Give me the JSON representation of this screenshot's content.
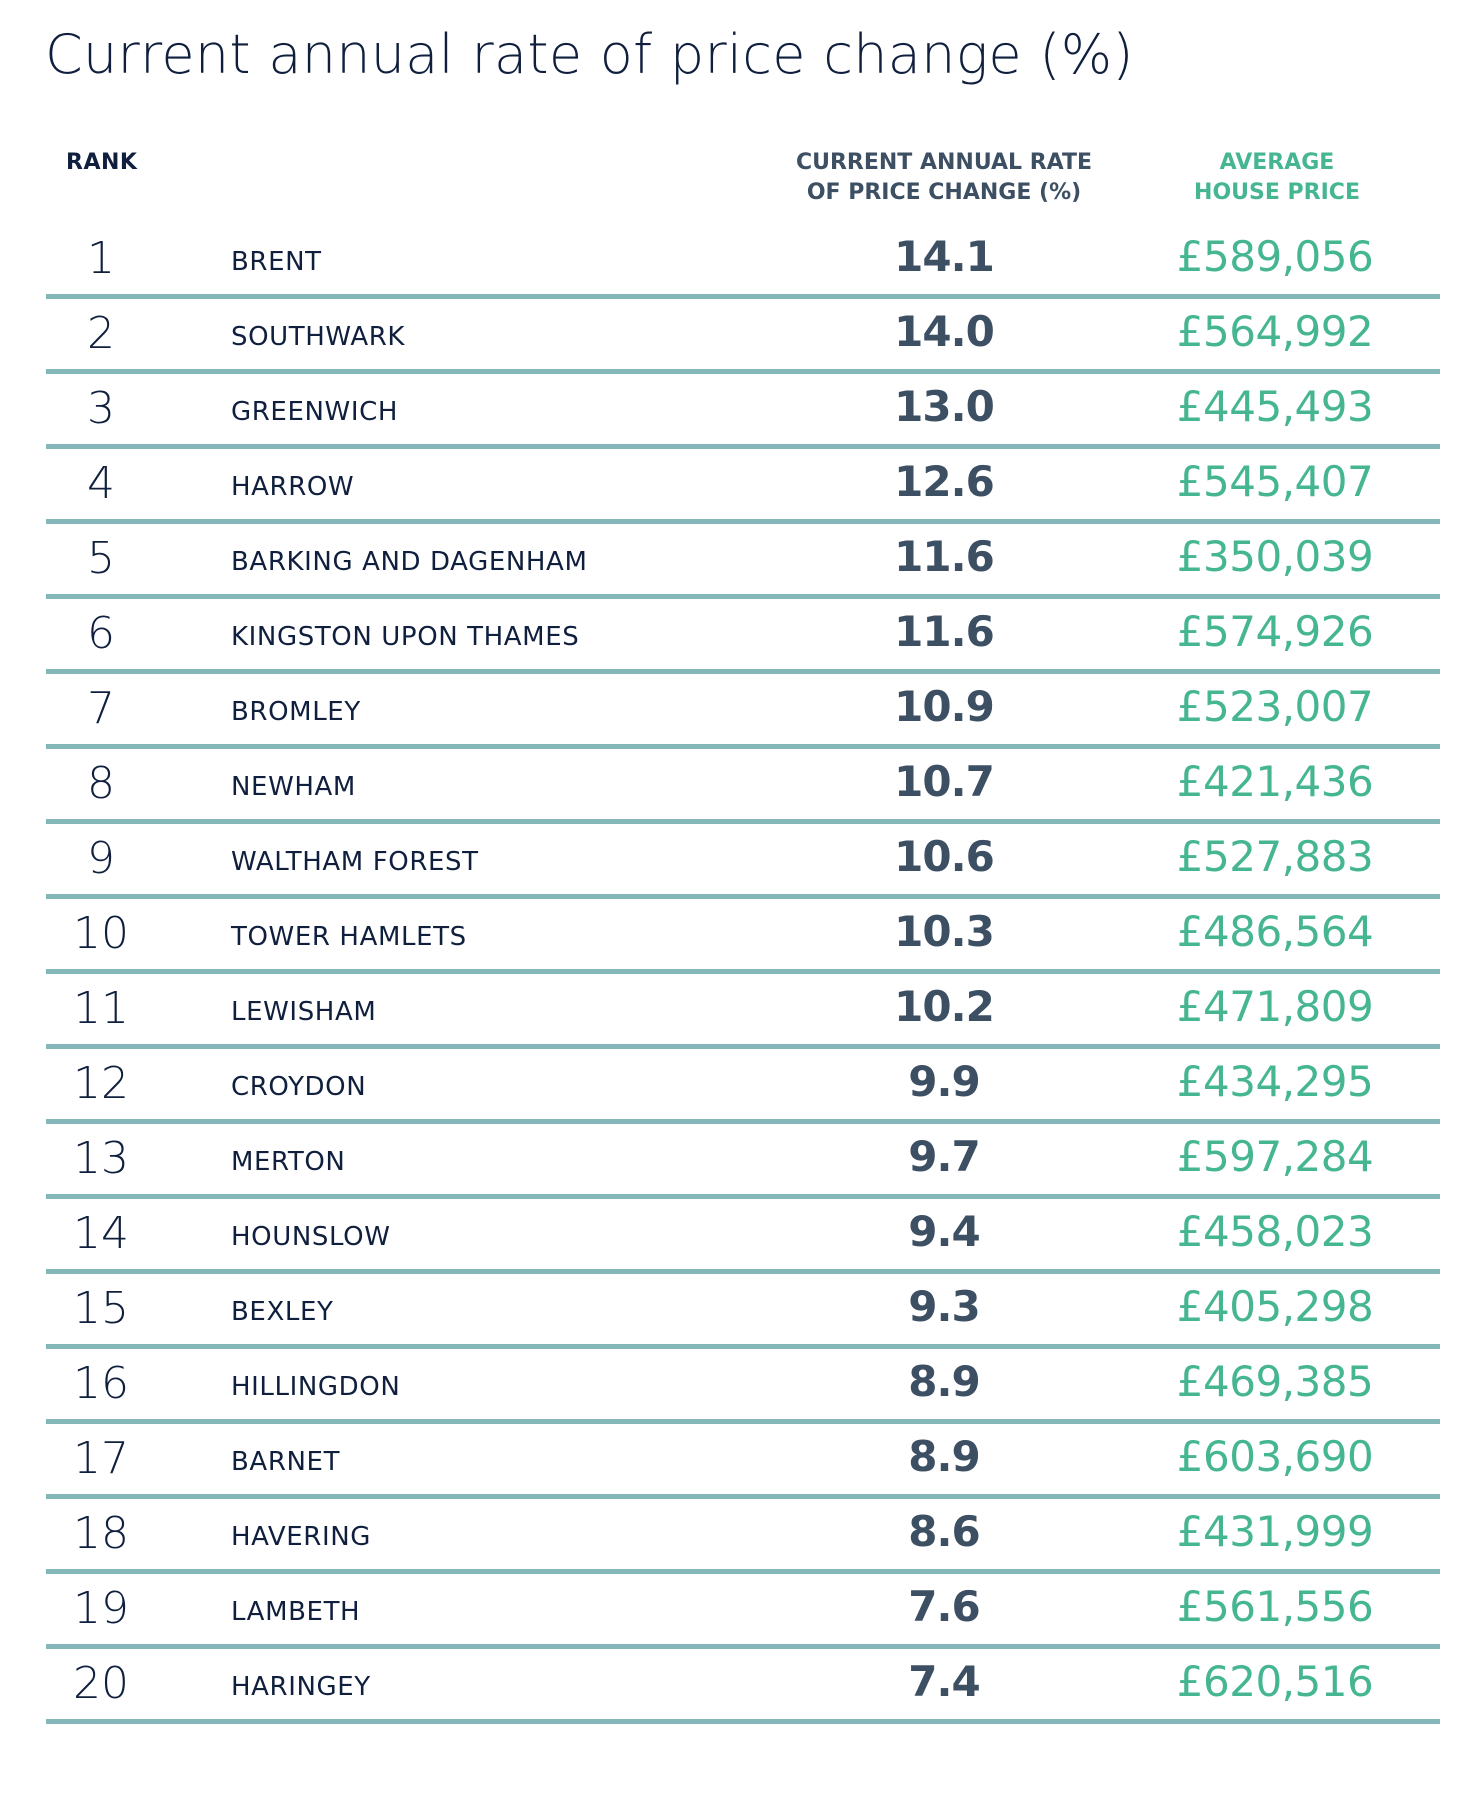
{
  "title": "Current annual rate of price change (%)",
  "headers": {
    "rank": "RANK",
    "rate_line1": "CURRENT ANNUAL RATE",
    "rate_line2": "OF PRICE CHANGE (%)",
    "price_line1": "AVERAGE",
    "price_line2": "HOUSE PRICE"
  },
  "colors": {
    "navy": "#0f1f3d",
    "slate": "#3d4f63",
    "green": "#45b592",
    "rule": "#84b8b8"
  },
  "rows": [
    {
      "rank": "1",
      "borough": "BRENT",
      "rate": "14.1",
      "price": "£589,056"
    },
    {
      "rank": "2",
      "borough": "SOUTHWARK",
      "rate": "14.0",
      "price": "£564,992"
    },
    {
      "rank": "3",
      "borough": "GREENWICH",
      "rate": "13.0",
      "price": "£445,493"
    },
    {
      "rank": "4",
      "borough": "HARROW",
      "rate": "12.6",
      "price": "£545,407"
    },
    {
      "rank": "5",
      "borough": "BARKING AND DAGENHAM",
      "rate": "11.6",
      "price": "£350,039"
    },
    {
      "rank": "6",
      "borough": "KINGSTON UPON THAMES",
      "rate": "11.6",
      "price": "£574,926"
    },
    {
      "rank": "7",
      "borough": "BROMLEY",
      "rate": "10.9",
      "price": "£523,007"
    },
    {
      "rank": "8",
      "borough": "NEWHAM",
      "rate": "10.7",
      "price": "£421,436"
    },
    {
      "rank": "9",
      "borough": "WALTHAM FOREST",
      "rate": "10.6",
      "price": "£527,883"
    },
    {
      "rank": "10",
      "borough": "TOWER HAMLETS",
      "rate": "10.3",
      "price": "£486,564"
    },
    {
      "rank": "11",
      "borough": "LEWISHAM",
      "rate": "10.2",
      "price": "£471,809"
    },
    {
      "rank": "12",
      "borough": "CROYDON",
      "rate": "9.9",
      "price": "£434,295"
    },
    {
      "rank": "13",
      "borough": "MERTON",
      "rate": "9.7",
      "price": "£597,284"
    },
    {
      "rank": "14",
      "borough": "HOUNSLOW",
      "rate": "9.4",
      "price": "£458,023"
    },
    {
      "rank": "15",
      "borough": "BEXLEY",
      "rate": "9.3",
      "price": "£405,298"
    },
    {
      "rank": "16",
      "borough": "HILLINGDON",
      "rate": "8.9",
      "price": "£469,385"
    },
    {
      "rank": "17",
      "borough": "BARNET",
      "rate": "8.9",
      "price": "£603,690"
    },
    {
      "rank": "18",
      "borough": "HAVERING",
      "rate": "8.6",
      "price": "£431,999"
    },
    {
      "rank": "19",
      "borough": "LAMBETH",
      "rate": "7.6",
      "price": "£561,556"
    },
    {
      "rank": "20",
      "borough": "HARINGEY",
      "rate": "7.4",
      "price": "£620,516"
    }
  ]
}
